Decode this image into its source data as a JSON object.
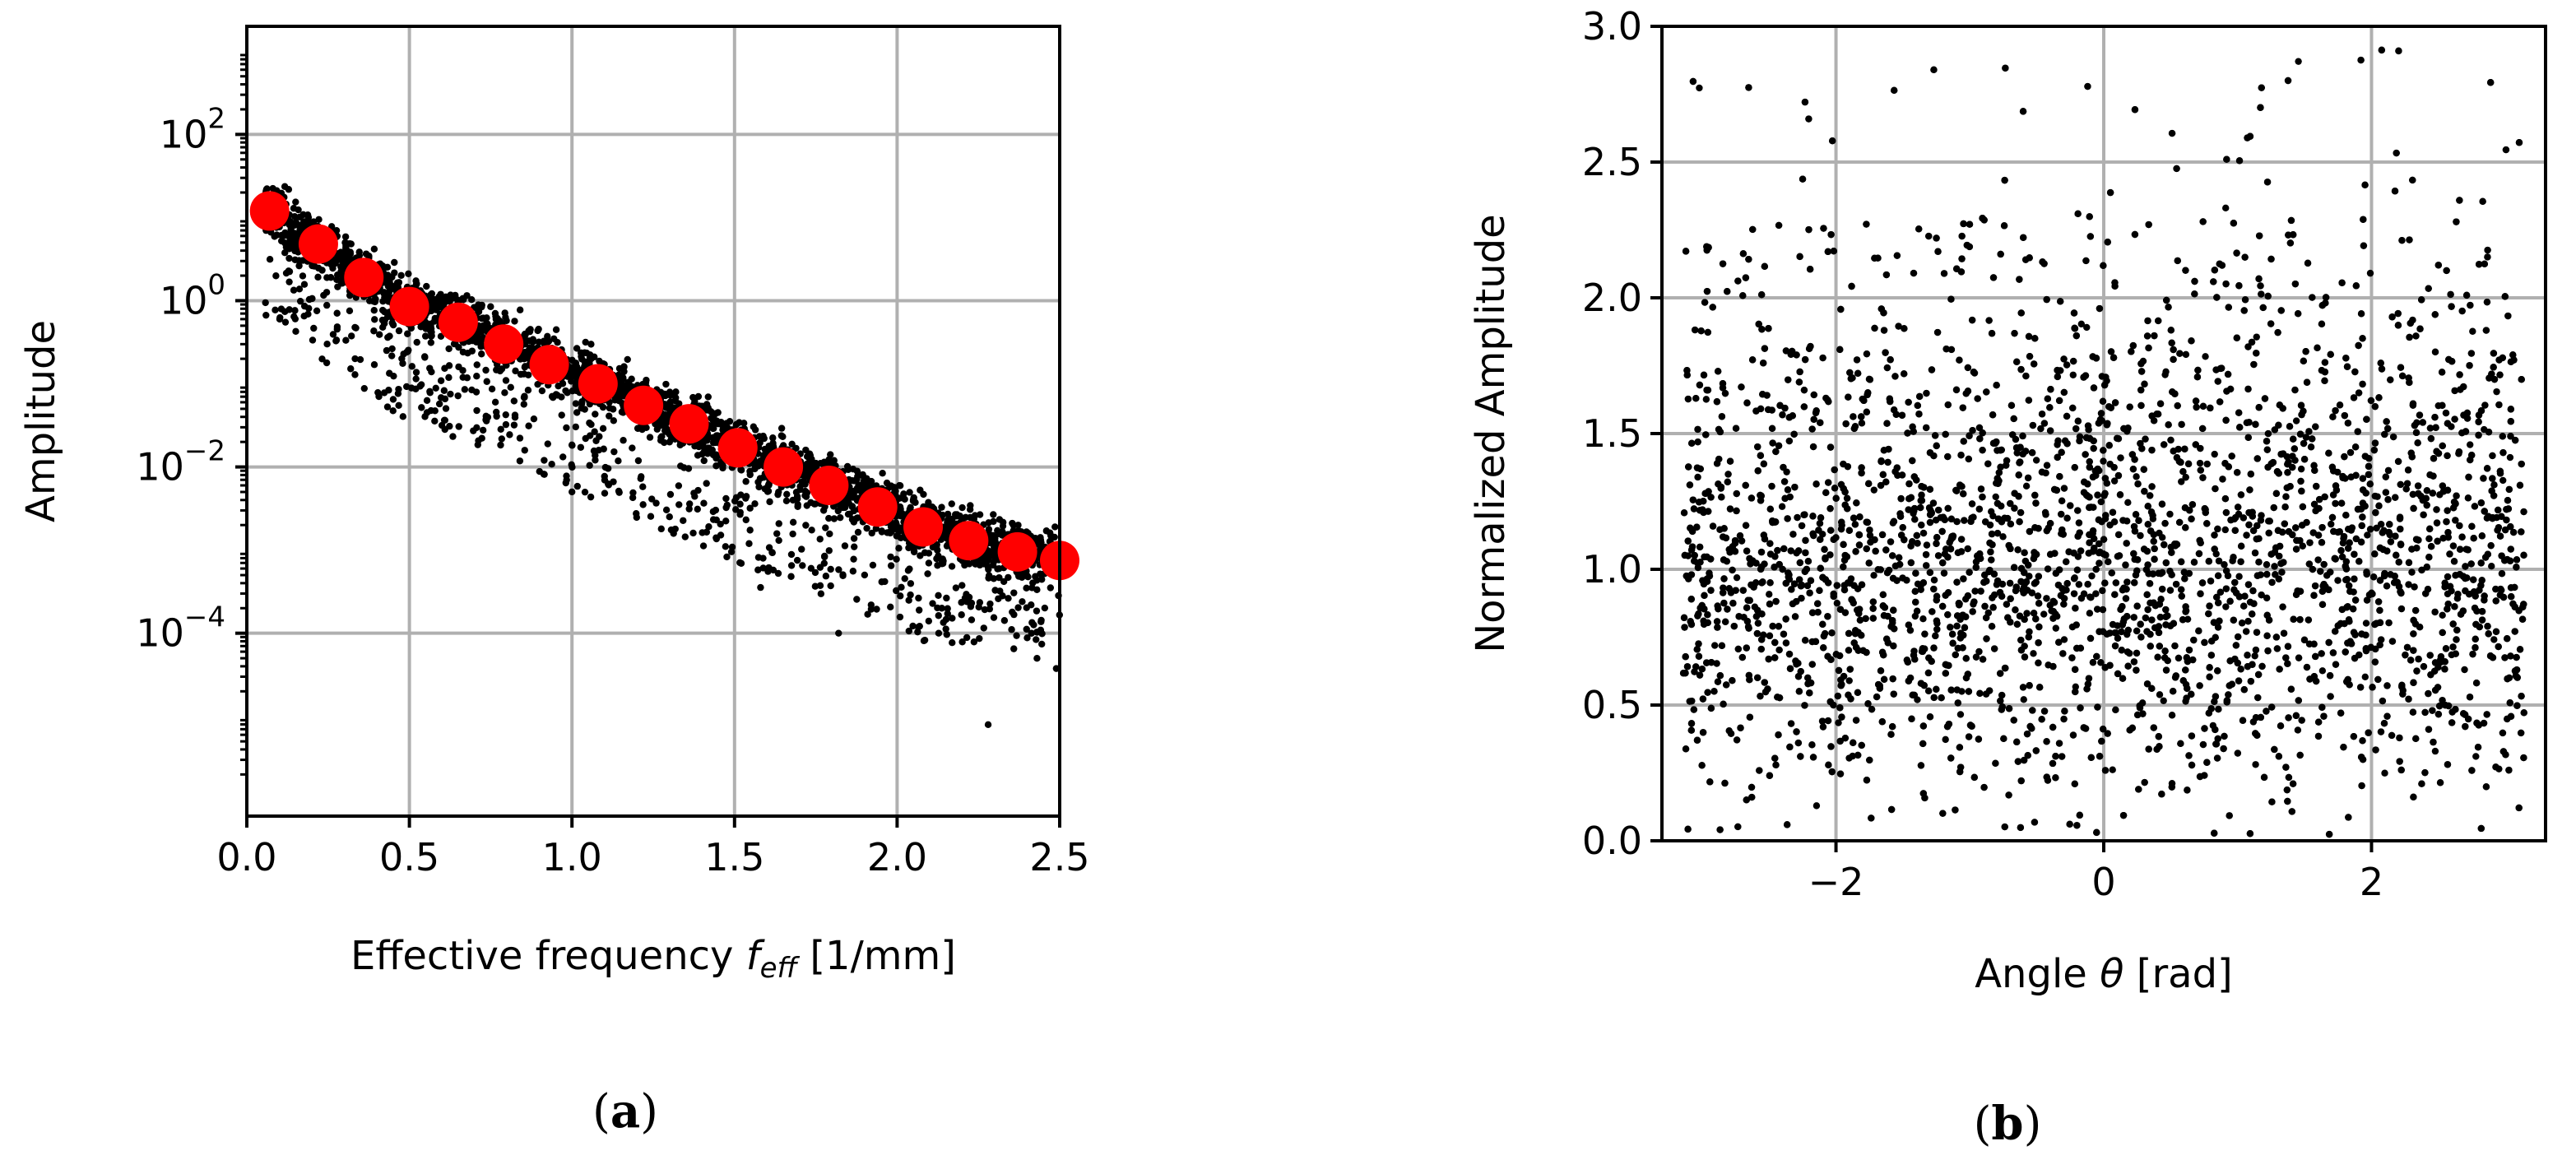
{
  "chart_data": [
    {
      "type": "scatter",
      "panel_label": "a",
      "xlabel": "Effective frequency ",
      "xlabel_symbol": "f",
      "xlabel_subscript": "eff",
      "xlabel_unit": " [1/mm]",
      "ylabel": "Amplitude",
      "xlim": [
        0.0,
        2.5
      ],
      "ylim_log10": [
        -6.2,
        3.3
      ],
      "y_scale": "log",
      "x_ticks": [
        "0.0",
        "0.5",
        "1.0",
        "1.5",
        "2.0",
        "2.5"
      ],
      "y_tick_exponents": [
        2,
        0,
        -2,
        -4
      ],
      "grid": true,
      "series": [
        {
          "marker": "large-circle",
          "color": "#ff0000",
          "x": [
            0.07,
            0.22,
            0.36,
            0.5,
            0.65,
            0.79,
            0.93,
            1.08,
            1.22,
            1.36,
            1.51,
            1.65,
            1.79,
            1.94,
            2.08,
            2.22,
            2.37,
            2.5
          ],
          "y": [
            12.0,
            4.8,
            1.9,
            0.85,
            0.55,
            0.3,
            0.17,
            0.1,
            0.055,
            0.033,
            0.017,
            0.01,
            0.006,
            0.0033,
            0.0019,
            0.0013,
            0.00095,
            0.00075
          ]
        },
        {
          "marker": "small-dot",
          "color": "#000000",
          "description_of_spread_log10": [
            1.2,
            0.35
          ]
        }
      ]
    },
    {
      "type": "scatter",
      "panel_label": "b",
      "xlabel": "Angle ",
      "xlabel_symbol": "θ",
      "xlabel_unit": " [rad]",
      "ylabel": "Normalized Amplitude",
      "xlim": [
        -3.3,
        3.3
      ],
      "ylim": [
        0.0,
        3.0
      ],
      "x_ticks": [
        "−2",
        "0",
        "2"
      ],
      "x_tick_values": [
        -2,
        0,
        2
      ],
      "y_ticks": [
        "0.0",
        "0.5",
        "1.0",
        "1.5",
        "2.0",
        "2.5",
        "3.0"
      ],
      "y_tick_values": [
        0,
        0.5,
        1.0,
        1.5,
        2.0,
        2.5,
        3.0
      ],
      "grid": true,
      "series": [
        {
          "marker": "small-dot",
          "color": "#000000",
          "distribution": "dense points centered near 1.0, sparse up to 2.9"
        }
      ]
    }
  ],
  "colors": {
    "accent": "#ff0000",
    "points": "#000000",
    "grid": "#b0b0b0"
  }
}
